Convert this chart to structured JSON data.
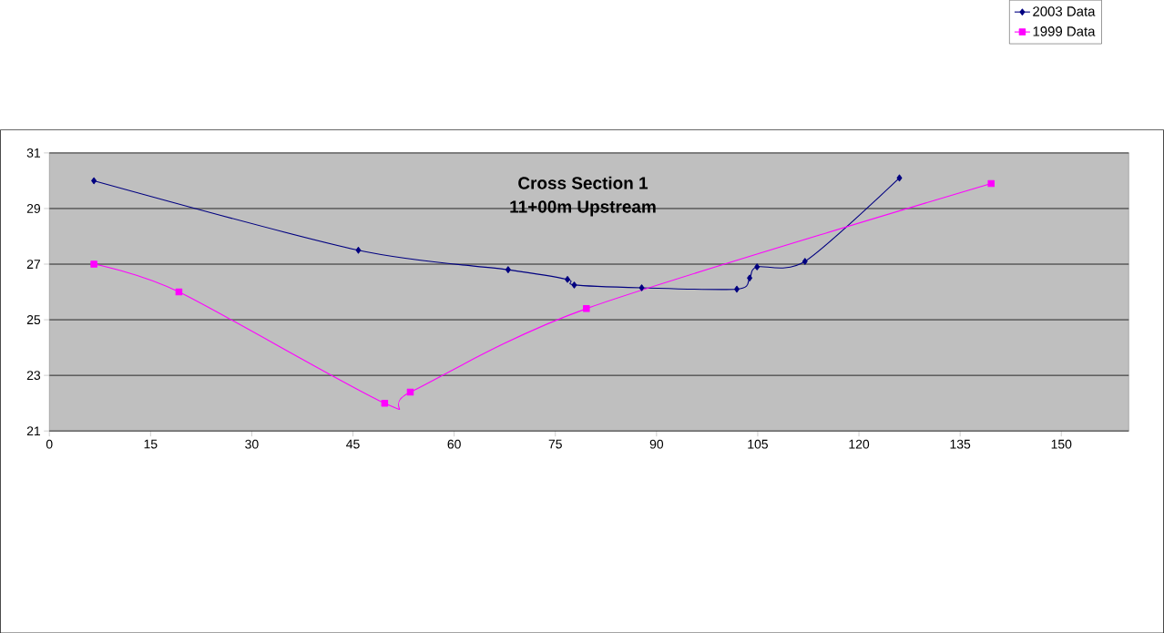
{
  "chart_data": {
    "type": "line",
    "title": "Cross Section 1\n11+00m Upstream",
    "series": [
      {
        "name": "2003 Data",
        "color": "#000080",
        "marker": "diamond",
        "x": [
          6.6,
          45.8,
          68,
          76.8,
          77.8,
          87.8,
          101.9,
          103.8,
          104.9,
          112,
          126
        ],
        "values": [
          30.0,
          27.5,
          26.8,
          26.45,
          26.25,
          26.15,
          26.1,
          26.5,
          26.9,
          27.1,
          30.1
        ]
      },
      {
        "name": "1999 Data",
        "color": "#ff00ff",
        "marker": "square",
        "x": [
          6.6,
          19.2,
          49.7,
          53.5,
          79.6,
          139.6
        ],
        "values": [
          27.0,
          26.0,
          22.0,
          22.4,
          25.4,
          29.9
        ]
      }
    ],
    "xlim": [
      0,
      160
    ],
    "xticks": [
      0,
      15,
      30,
      45,
      60,
      75,
      90,
      105,
      120,
      135,
      150
    ],
    "ylim": [
      21,
      31
    ],
    "yticks": [
      21,
      23,
      25,
      27,
      29,
      31
    ],
    "grid": "y",
    "legend": "top right",
    "line_style": "solid"
  }
}
